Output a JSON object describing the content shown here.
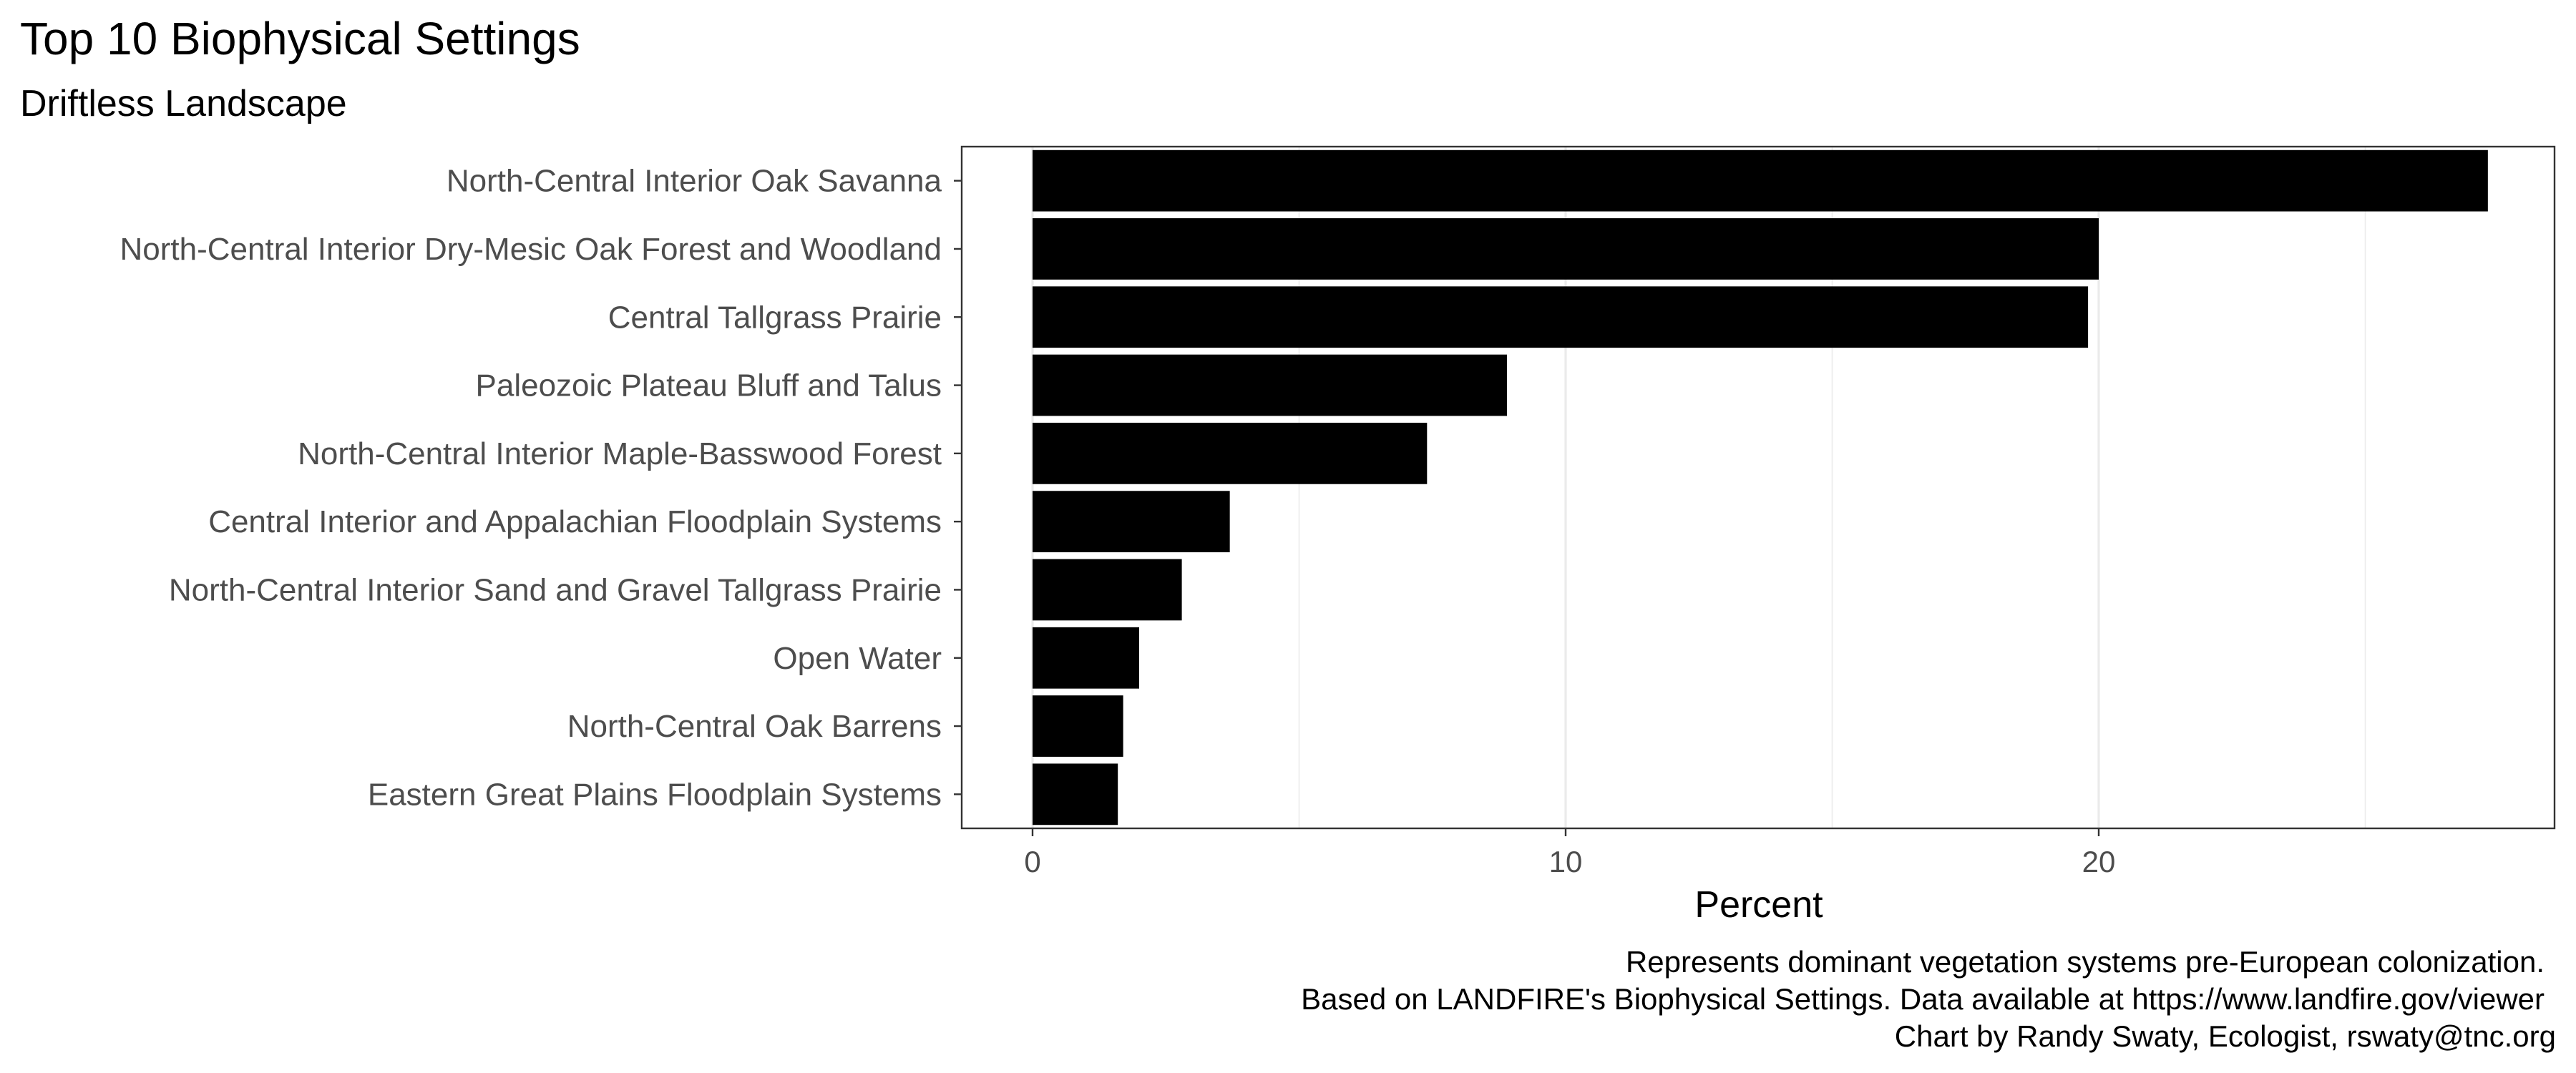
{
  "chart_data": {
    "type": "bar",
    "orientation": "horizontal",
    "title": "Top 10 Biophysical Settings",
    "subtitle": "Driftless Landscape",
    "xlabel": "Percent",
    "ylabel": "",
    "xlim": [
      0,
      28
    ],
    "x_ticks": [
      0,
      10,
      20
    ],
    "grid": true,
    "legend": "none",
    "bar_color": "#000000",
    "categories": [
      "North-Central Interior Oak Savanna",
      "North-Central Interior Dry-Mesic Oak Forest and Woodland",
      "Central Tallgrass Prairie",
      "Paleozoic Plateau Bluff and Talus",
      "North-Central Interior Maple-Basswood Forest",
      "Central Interior and Appalachian Floodplain Systems",
      "North-Central Interior Sand and Gravel Tallgrass Prairie",
      "Open Water",
      "North-Central Oak Barrens",
      "Eastern Great Plains Floodplain Systems"
    ],
    "values": [
      27.3,
      20.0,
      19.8,
      8.9,
      7.4,
      3.7,
      2.8,
      2.0,
      1.7,
      1.6
    ],
    "caption": [
      "Represents dominant vegetation systems pre-European colonization.",
      "Based on LANDFIRE's Biophysical Settings.  Data available at https://www.landfire.gov/viewer",
      "Chart by Randy Swaty, Ecologist, rswaty@tnc.org"
    ]
  }
}
